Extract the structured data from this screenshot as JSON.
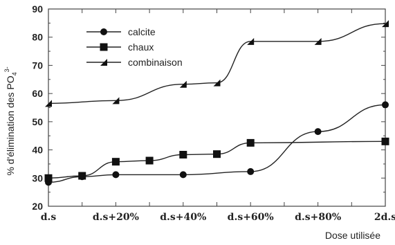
{
  "chart_data": {
    "type": "line",
    "categories": [
      "d.s",
      "",
      "d.s+20%",
      "",
      "d.s+40%",
      "",
      "d.s+60%",
      "",
      "d.s+80%",
      "",
      "2d.s"
    ],
    "x_tick_labels": [
      "d.s",
      "d.s+20%",
      "d.s+40%",
      "d.s+60%",
      "d.s+80%",
      "2d.s"
    ],
    "ylabel": "% d'élimination des PO₄³⁻",
    "ylabel_main": "% d'élimination des PO",
    "ylabel_sub": "4",
    "ylabel_sup": "3-",
    "xlabel": "Dose utilisée",
    "ylim": [
      20,
      90
    ],
    "yticks": [
      20,
      30,
      40,
      50,
      60,
      70,
      80,
      90
    ],
    "legend_position": "top-left",
    "series": [
      {
        "name": "calcite",
        "marker": "circle",
        "points": [
          {
            "x": 0,
            "y": 28.5
          },
          {
            "x": 1,
            "y": 30.5
          },
          {
            "x": 2,
            "y": 31.2
          },
          {
            "x": 4,
            "y": 31.2
          },
          {
            "x": 6,
            "y": 32.3
          },
          {
            "x": 8,
            "y": 46.5
          },
          {
            "x": 10,
            "y": 56.0
          }
        ]
      },
      {
        "name": "chaux",
        "marker": "square",
        "points": [
          {
            "x": 0,
            "y": 30.0
          },
          {
            "x": 1,
            "y": 30.8
          },
          {
            "x": 2,
            "y": 35.8
          },
          {
            "x": 3,
            "y": 36.2
          },
          {
            "x": 4,
            "y": 38.3
          },
          {
            "x": 5,
            "y": 38.5
          },
          {
            "x": 6,
            "y": 42.5
          },
          {
            "x": 10,
            "y": 43.0
          }
        ]
      },
      {
        "name": "combinaison",
        "marker": "triangle",
        "points": [
          {
            "x": 0,
            "y": 56.5
          },
          {
            "x": 2,
            "y": 57.5
          },
          {
            "x": 4,
            "y": 63.3
          },
          {
            "x": 5,
            "y": 63.8
          },
          {
            "x": 6,
            "y": 78.5
          },
          {
            "x": 8,
            "y": 78.5
          },
          {
            "x": 10,
            "y": 84.8
          }
        ]
      }
    ]
  }
}
